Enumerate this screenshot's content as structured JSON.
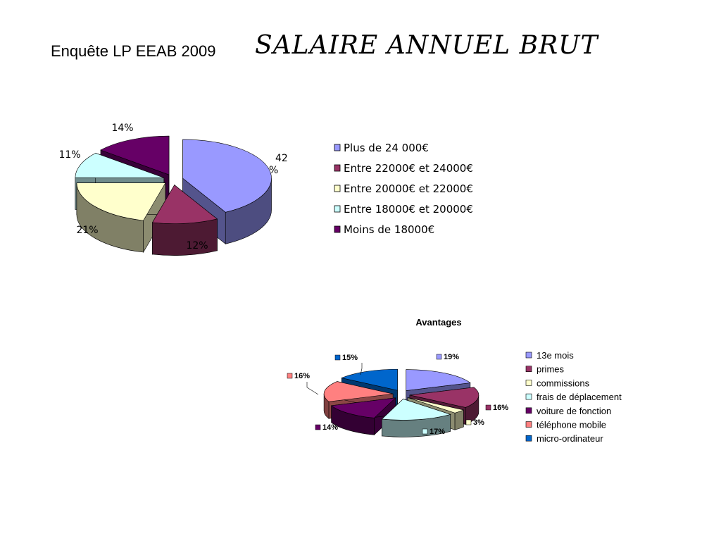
{
  "slide": {
    "title": "Enquête LP EEAB 2009",
    "heading": "SALAIRE ANNUEL BRUT"
  },
  "colors": {
    "periwinkle": "#9999ff",
    "plum": "#993366",
    "ivory": "#ffffcc",
    "light_cyan": "#ccffff",
    "dark_purple": "#660066",
    "salmon": "#ff8080",
    "blue": "#0066cc"
  },
  "chart_data": [
    {
      "type": "pie",
      "title": "",
      "style": "3d-exploded",
      "legend_position": "right",
      "slices": [
        {
          "label": "Plus de 24 000€",
          "value": 42,
          "display": "42 %",
          "color": "#9999ff"
        },
        {
          "label": "Entre 22000€ et 24000€",
          "value": 12,
          "display": "12%",
          "color": "#993366"
        },
        {
          "label": "Entre 20000€ et 22000€",
          "value": 21,
          "display": "21%",
          "color": "#ffffcc"
        },
        {
          "label": "Entre 18000€ et 20000€",
          "value": 11,
          "display": "11%",
          "color": "#ccffff"
        },
        {
          "label": "Moins de 18000€",
          "value": 14,
          "display": "14%",
          "color": "#660066"
        }
      ]
    },
    {
      "type": "pie",
      "title": "Avantages",
      "style": "3d-exploded",
      "legend_position": "right",
      "slices": [
        {
          "label": "13e mois",
          "value": 19,
          "display": "19%",
          "color": "#9999ff"
        },
        {
          "label": "primes",
          "value": 16,
          "display": "16%",
          "color": "#993366"
        },
        {
          "label": "commissions",
          "value": 3,
          "display": "3%",
          "color": "#ffffcc"
        },
        {
          "label": "frais de déplacement",
          "value": 17,
          "display": "17%",
          "color": "#ccffff"
        },
        {
          "label": "voiture de fonction",
          "value": 14,
          "display": "14%",
          "color": "#660066"
        },
        {
          "label": "téléphone mobile",
          "value": 16,
          "display": "16%",
          "color": "#ff8080"
        },
        {
          "label": "micro-ordinateur",
          "value": 15,
          "display": "15%",
          "color": "#0066cc"
        }
      ]
    }
  ]
}
